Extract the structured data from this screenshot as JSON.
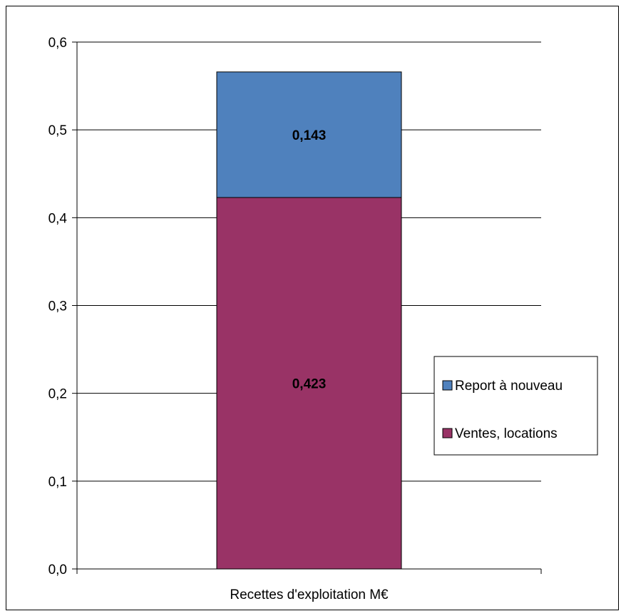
{
  "chart_data": {
    "type": "bar",
    "stacked": true,
    "categories": [
      "Recettes d'exploitation M€"
    ],
    "series": [
      {
        "name": "Ventes, locations",
        "values": [
          0.423
        ],
        "color": "#993366",
        "label": "0,423"
      },
      {
        "name": "Report à nouveau",
        "values": [
          0.143
        ],
        "color": "#4F81BD",
        "label": "0,143"
      }
    ],
    "ylim": [
      0,
      0.6
    ],
    "yticks": [
      0.0,
      0.1,
      0.2,
      0.3,
      0.4,
      0.5,
      0.6
    ],
    "ytick_labels": [
      "0,0",
      "0,1",
      "0,2",
      "0,3",
      "0,4",
      "0,5",
      "0,6"
    ],
    "grid": true,
    "legend": {
      "position": "right",
      "order": [
        "Report à nouveau",
        "Ventes, locations"
      ]
    }
  }
}
